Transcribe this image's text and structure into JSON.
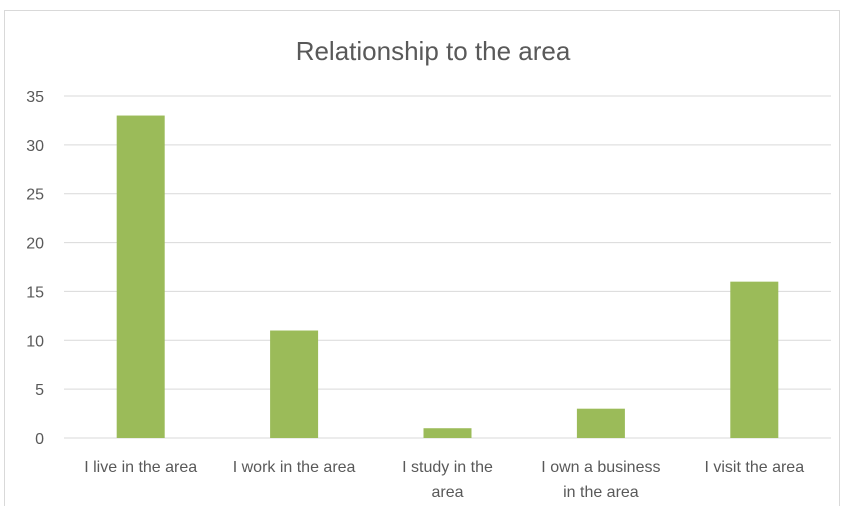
{
  "chart_data": {
    "type": "bar",
    "title": "Relationship to the area",
    "xlabel": "",
    "ylabel": "",
    "categories": [
      [
        "I live in the area"
      ],
      [
        "I work in the area"
      ],
      [
        "I study in the",
        "area"
      ],
      [
        "I own a business",
        "in the area"
      ],
      [
        "I visit the area"
      ]
    ],
    "values": [
      33,
      11,
      1,
      3,
      16
    ],
    "ylim": [
      0,
      35
    ],
    "yticks": [
      0,
      5,
      10,
      15,
      20,
      25,
      30,
      35
    ],
    "grid": true,
    "bar_color": "#9bbb59",
    "gridline_color": "#d9d9d9"
  }
}
